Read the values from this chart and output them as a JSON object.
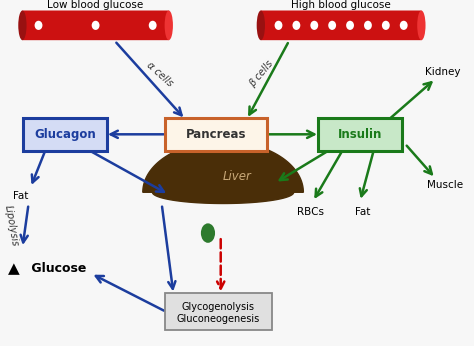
{
  "bg_color": "#f7f7f7",
  "low_blood_label": "Low blood glucose",
  "high_blood_label": "High blood glucose",
  "glucagon_label": "Glucagon",
  "pancreas_label": "Pancreas",
  "insulin_label": "Insulin",
  "liver_label": "Liver",
  "glyco_line1": "Glycogenolysis",
  "glyco_line2": "Gluconeogenesis",
  "glucose_label": " Glucose",
  "fat_left_label": "Fat",
  "fat_right_label": "Fat",
  "rbcs_label": "RBCs",
  "kidney_label": "Kidney",
  "muscle_label": "Muscle",
  "lipolysis_label": "Lipolysis",
  "alpha_label": "α cells",
  "beta_label": "β cells",
  "blue": "#1c3d9e",
  "green": "#1a7a1a",
  "orange_edge": "#c8622a",
  "orange_fill": "#fdf5e8",
  "red": "#cc0000",
  "liver_color": "#4a2e08",
  "gallbladder_color": "#2d7a2d",
  "vessel_color": "#cc1111",
  "vessel_dark": "#991111",
  "vessel_light": "#ee3333"
}
